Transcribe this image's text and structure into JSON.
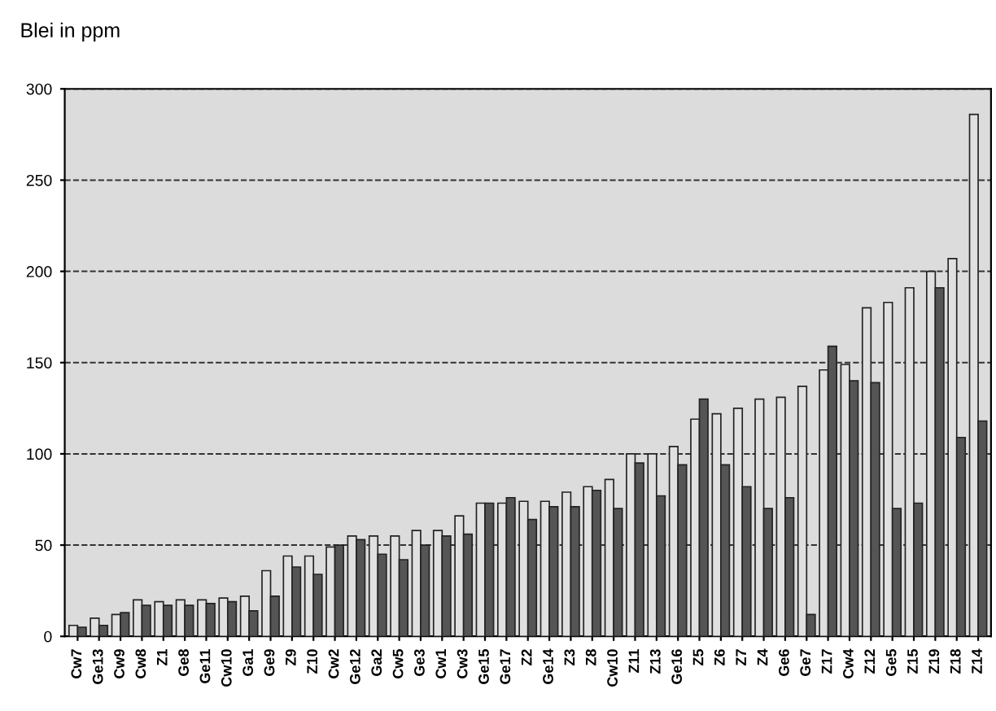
{
  "chart_data": {
    "type": "bar",
    "ylabel": "Blei in ppm",
    "categories": [
      "Cw7",
      "Ge13",
      "Cw9",
      "Cw8",
      "Z1",
      "Ge8",
      "Ge11",
      "Cw10",
      "Ga1",
      "Ge9",
      "Z9",
      "Z10",
      "Cw2",
      "Ge12",
      "Ga2",
      "Cw5",
      "Ge3",
      "Cw1",
      "Cw3",
      "Ge15",
      "Ge17",
      "Z2",
      "Ge14",
      "Z3",
      "Z8",
      "Cw10",
      "Z11",
      "Z13",
      "Ge16",
      "Z5",
      "Z6",
      "Z7",
      "Z4",
      "Ge6",
      "Ge7",
      "Z17",
      "Cw4",
      "Z12",
      "Ge5",
      "Z15",
      "Z19",
      "Z18",
      "Z14"
    ],
    "series": [
      {
        "color": "#e0e0e0",
        "values": [
          6,
          10,
          12,
          20,
          19,
          20,
          20,
          21,
          22,
          36,
          44,
          44,
          49,
          55,
          55,
          55,
          58,
          58,
          66,
          73,
          73,
          74,
          74,
          79,
          82,
          86,
          100,
          100,
          104,
          119,
          122,
          125,
          130,
          131,
          137,
          146,
          149,
          180,
          183,
          191,
          200,
          207,
          286
        ]
      },
      {
        "color": "#555555",
        "values": [
          5,
          6,
          13,
          17,
          17,
          17,
          18,
          19,
          14,
          22,
          38,
          34,
          50,
          53,
          45,
          42,
          50,
          55,
          56,
          73,
          76,
          64,
          71,
          71,
          80,
          70,
          95,
          77,
          94,
          130,
          94,
          82,
          70,
          76,
          12,
          159,
          140,
          139,
          70,
          73,
          191,
          109,
          118
        ]
      }
    ],
    "ylim": [
      0,
      300
    ],
    "yticks": [
      0,
      50,
      100,
      150,
      200,
      250,
      300
    ],
    "grid": "y"
  }
}
